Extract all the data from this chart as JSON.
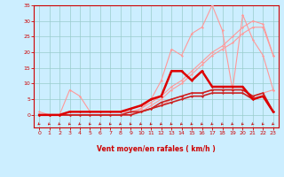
{
  "background_color": "#cceeff",
  "grid_color": "#99cccc",
  "xlabel": "Vent moyen/en rafales ( km/h )",
  "xlim": [
    -0.5,
    23.5
  ],
  "ylim": [
    -4,
    35
  ],
  "yticks": [
    0,
    5,
    10,
    15,
    20,
    25,
    30,
    35
  ],
  "xticks": [
    0,
    1,
    2,
    3,
    4,
    5,
    6,
    7,
    8,
    9,
    10,
    11,
    12,
    13,
    14,
    15,
    16,
    17,
    18,
    19,
    20,
    21,
    22,
    23
  ],
  "series": [
    {
      "color": "#ff9999",
      "linewidth": 0.8,
      "x": [
        0,
        1,
        2,
        3,
        4,
        5,
        6,
        7,
        8,
        9,
        10,
        11,
        12,
        13,
        14,
        15,
        16,
        17,
        18,
        19,
        20,
        21,
        22,
        23
      ],
      "y": [
        0,
        0,
        0,
        0,
        0,
        0,
        0,
        0,
        0,
        0,
        2,
        5,
        11,
        21,
        19,
        26,
        28,
        35,
        27,
        8,
        32,
        24,
        19,
        8
      ]
    },
    {
      "color": "#ff9999",
      "linewidth": 0.8,
      "x": [
        0,
        1,
        2,
        3,
        4,
        5,
        6,
        7,
        8,
        9,
        10,
        11,
        12,
        13,
        14,
        15,
        16,
        17,
        18,
        19,
        20,
        21,
        22,
        23
      ],
      "y": [
        0,
        0,
        0,
        0,
        0,
        0,
        0,
        0,
        0,
        1,
        2,
        4,
        6,
        9,
        11,
        14,
        17,
        20,
        22,
        25,
        28,
        30,
        29,
        19
      ]
    },
    {
      "color": "#ff9999",
      "linewidth": 0.8,
      "x": [
        0,
        1,
        2,
        3,
        4,
        5,
        6,
        7,
        8,
        9,
        10,
        11,
        12,
        13,
        14,
        15,
        16,
        17,
        18,
        19,
        20,
        21,
        22,
        23
      ],
      "y": [
        0,
        0,
        0,
        0,
        0,
        0,
        0,
        0,
        0,
        0,
        1,
        3,
        5,
        8,
        10,
        13,
        16,
        19,
        21,
        23,
        26,
        28,
        28,
        19
      ]
    },
    {
      "color": "#ff9999",
      "linewidth": 0.8,
      "x": [
        0,
        1,
        2,
        3,
        4,
        5,
        6,
        7,
        8,
        9,
        10,
        11,
        12,
        13,
        14,
        15,
        16,
        17,
        18,
        19,
        20,
        21,
        22,
        23
      ],
      "y": [
        1,
        0,
        0,
        8,
        6,
        1,
        1,
        1,
        1,
        1,
        1,
        2,
        3,
        5,
        6,
        7,
        7,
        8,
        8,
        8,
        8,
        6,
        7,
        8
      ]
    },
    {
      "color": "#cc2222",
      "linewidth": 1.2,
      "x": [
        0,
        1,
        2,
        3,
        4,
        5,
        6,
        7,
        8,
        9,
        10,
        11,
        12,
        13,
        14,
        15,
        16,
        17,
        18,
        19,
        20,
        21,
        22,
        23
      ],
      "y": [
        0,
        0,
        0,
        0,
        0,
        0,
        0,
        0,
        0,
        0,
        1,
        2,
        3,
        4,
        5,
        6,
        6,
        7,
        7,
        7,
        7,
        5,
        6,
        1
      ]
    },
    {
      "color": "#cc2222",
      "linewidth": 1.2,
      "x": [
        0,
        1,
        2,
        3,
        4,
        5,
        6,
        7,
        8,
        9,
        10,
        11,
        12,
        13,
        14,
        15,
        16,
        17,
        18,
        19,
        20,
        21,
        22,
        23
      ],
      "y": [
        0,
        0,
        0,
        0,
        0,
        0,
        0,
        0,
        0,
        1,
        1,
        2,
        4,
        5,
        6,
        7,
        7,
        8,
        8,
        8,
        8,
        6,
        7,
        1
      ]
    },
    {
      "color": "#dd0000",
      "linewidth": 1.8,
      "x": [
        0,
        1,
        2,
        3,
        4,
        5,
        6,
        7,
        8,
        9,
        10,
        11,
        12,
        13,
        14,
        15,
        16,
        17,
        18,
        19,
        20,
        21,
        22,
        23
      ],
      "y": [
        0,
        0,
        0,
        1,
        1,
        1,
        1,
        1,
        1,
        2,
        3,
        5,
        6,
        14,
        14,
        11,
        14,
        9,
        9,
        9,
        9,
        5,
        6,
        1
      ]
    }
  ],
  "arrow_color": "#cc0000",
  "tick_color": "#cc0000",
  "label_color": "#cc0000"
}
